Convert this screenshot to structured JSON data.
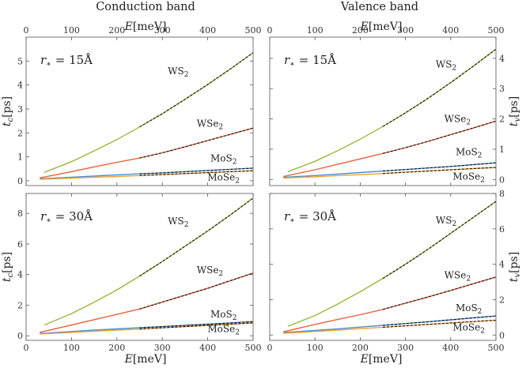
{
  "column_titles": [
    "Conduction band",
    "Valence band"
  ],
  "top_axis_label": "E[meV]",
  "bottom_axis_label": "E[meV]",
  "colors": {
    "WS2": "#98b83a",
    "WSe2": "#e8613c",
    "MoS2": "#4a8fd0",
    "MoSe2": "#f0a030",
    "fit": "#111111"
  },
  "chart_data": [
    {
      "type": "line",
      "name": "panel-cb-15",
      "title": "Conduction band",
      "radius_label": "r* = 15Å",
      "ylabel": "t_c[ps]",
      "xlim": [
        0,
        500
      ],
      "ylim": [
        -0.2,
        6.0
      ],
      "xticks": [
        0,
        100,
        200,
        300,
        400,
        500
      ],
      "yticks": [
        0,
        1,
        2,
        3,
        4,
        5
      ],
      "series": [
        {
          "name": "WS2",
          "x": [
            40,
            100,
            150,
            200,
            250,
            300,
            350,
            400,
            450,
            500
          ],
          "values": [
            0.35,
            0.8,
            1.25,
            1.72,
            2.25,
            2.8,
            3.4,
            4.02,
            4.67,
            5.35
          ],
          "label_xy": [
            335,
            4.45
          ]
        },
        {
          "name": "WSe2",
          "x": [
            30,
            100,
            150,
            200,
            250,
            300,
            350,
            400,
            450,
            500
          ],
          "values": [
            0.12,
            0.38,
            0.58,
            0.77,
            0.95,
            1.17,
            1.42,
            1.68,
            1.94,
            2.2
          ],
          "label_xy": [
            405,
            2.25
          ]
        },
        {
          "name": "MoS2",
          "x": [
            30,
            100,
            150,
            200,
            250,
            300,
            350,
            400,
            450,
            500
          ],
          "values": [
            0.08,
            0.15,
            0.2,
            0.25,
            0.29,
            0.33,
            0.38,
            0.43,
            0.48,
            0.53
          ],
          "label_xy": [
            435,
            0.8
          ]
        },
        {
          "name": "MoSe2",
          "x": [
            30,
            100,
            150,
            200,
            250,
            300,
            350,
            400,
            450,
            500
          ],
          "values": [
            0.06,
            0.11,
            0.15,
            0.18,
            0.22,
            0.26,
            0.3,
            0.34,
            0.38,
            0.42
          ],
          "label_xy": [
            435,
            0.02
          ]
        }
      ],
      "fit_from_x": 250
    },
    {
      "type": "line",
      "name": "panel-vb-15",
      "title": "Valence band",
      "radius_label": "r* = 15Å",
      "ylabel": "t_v[ps]",
      "xlim": [
        0,
        500
      ],
      "ylim": [
        -0.2,
        4.7
      ],
      "xticks": [
        0,
        100,
        200,
        300,
        400,
        500
      ],
      "yticks": [
        0,
        1,
        2,
        3,
        4
      ],
      "series": [
        {
          "name": "WS2",
          "x": [
            40,
            100,
            150,
            200,
            250,
            300,
            350,
            400,
            450,
            500
          ],
          "values": [
            0.26,
            0.6,
            0.95,
            1.33,
            1.75,
            2.2,
            2.68,
            3.2,
            3.74,
            4.3
          ],
          "label_xy": [
            390,
            3.7
          ]
        },
        {
          "name": "WSe2",
          "x": [
            30,
            100,
            150,
            200,
            250,
            300,
            350,
            400,
            450,
            500
          ],
          "values": [
            0.1,
            0.32,
            0.5,
            0.68,
            0.86,
            1.05,
            1.26,
            1.48,
            1.7,
            1.93
          ],
          "label_xy": [
            415,
            1.9
          ]
        },
        {
          "name": "MoS2",
          "x": [
            30,
            100,
            150,
            200,
            250,
            300,
            350,
            400,
            450,
            500
          ],
          "values": [
            0.07,
            0.13,
            0.18,
            0.23,
            0.28,
            0.33,
            0.38,
            0.43,
            0.49,
            0.55
          ],
          "label_xy": [
            440,
            0.8
          ]
        },
        {
          "name": "MoSe2",
          "x": [
            30,
            100,
            150,
            200,
            250,
            300,
            350,
            400,
            450,
            500
          ],
          "values": [
            0.05,
            0.09,
            0.13,
            0.16,
            0.2,
            0.24,
            0.28,
            0.32,
            0.36,
            0.4
          ],
          "label_xy": [
            440,
            0.0
          ]
        }
      ],
      "fit_from_x": 250
    },
    {
      "type": "line",
      "name": "panel-cb-30",
      "title": "",
      "radius_label": "r* = 30Å",
      "ylabel": "t_c[ps]",
      "xlim": [
        0,
        500
      ],
      "ylim": [
        -0.3,
        9.3
      ],
      "xticks": [
        0,
        100,
        200,
        300,
        400,
        500
      ],
      "yticks": [
        0,
        2,
        4,
        6,
        8
      ],
      "series": [
        {
          "name": "WS2",
          "x": [
            40,
            100,
            150,
            200,
            250,
            300,
            350,
            400,
            450,
            500
          ],
          "values": [
            0.7,
            1.45,
            2.2,
            3.0,
            3.9,
            4.85,
            5.85,
            6.85,
            7.9,
            9.0
          ],
          "label_xy": [
            335,
            7.3
          ]
        },
        {
          "name": "WSe2",
          "x": [
            30,
            100,
            150,
            200,
            250,
            300,
            350,
            400,
            450,
            500
          ],
          "values": [
            0.22,
            0.7,
            1.05,
            1.4,
            1.75,
            2.2,
            2.65,
            3.1,
            3.6,
            4.1
          ],
          "label_xy": [
            405,
            4.1
          ]
        },
        {
          "name": "MoS2",
          "x": [
            30,
            100,
            150,
            200,
            250,
            300,
            350,
            400,
            450,
            500
          ],
          "values": [
            0.15,
            0.28,
            0.37,
            0.45,
            0.53,
            0.6,
            0.68,
            0.76,
            0.84,
            0.93
          ],
          "label_xy": [
            435,
            1.2
          ]
        },
        {
          "name": "MoSe2",
          "x": [
            30,
            100,
            150,
            200,
            250,
            300,
            350,
            400,
            450,
            500
          ],
          "values": [
            0.12,
            0.22,
            0.3,
            0.37,
            0.44,
            0.52,
            0.6,
            0.68,
            0.76,
            0.84
          ],
          "label_xy": [
            435,
            0.25
          ]
        }
      ],
      "fit_from_x": 250
    },
    {
      "type": "line",
      "name": "panel-vb-30",
      "title": "",
      "radius_label": "r* = 30Å",
      "ylabel": "t_v[ps]",
      "xlim": [
        0,
        500
      ],
      "ylim": [
        -0.3,
        8.0
      ],
      "xticks": [
        0,
        100,
        200,
        300,
        400,
        500
      ],
      "yticks": [
        0,
        2,
        4,
        6,
        8
      ],
      "series": [
        {
          "name": "WS2",
          "x": [
            40,
            100,
            150,
            200,
            250,
            300,
            350,
            400,
            450,
            500
          ],
          "values": [
            0.5,
            1.1,
            1.75,
            2.45,
            3.2,
            4.0,
            4.85,
            5.75,
            6.65,
            7.55
          ],
          "label_xy": [
            390,
            6.3
          ]
        },
        {
          "name": "WSe2",
          "x": [
            30,
            100,
            150,
            200,
            250,
            300,
            350,
            400,
            450,
            500
          ],
          "values": [
            0.18,
            0.6,
            0.88,
            1.15,
            1.45,
            1.8,
            2.15,
            2.52,
            2.9,
            3.28
          ],
          "label_xy": [
            415,
            3.2
          ]
        },
        {
          "name": "MoS2",
          "x": [
            30,
            100,
            150,
            200,
            250,
            300,
            350,
            400,
            450,
            500
          ],
          "values": [
            0.14,
            0.26,
            0.35,
            0.45,
            0.55,
            0.65,
            0.75,
            0.86,
            0.97,
            1.08
          ],
          "label_xy": [
            440,
            1.35
          ]
        },
        {
          "name": "MoSe2",
          "x": [
            30,
            100,
            150,
            200,
            250,
            300,
            350,
            400,
            450,
            500
          ],
          "values": [
            0.1,
            0.2,
            0.28,
            0.36,
            0.44,
            0.52,
            0.6,
            0.68,
            0.76,
            0.84
          ],
          "label_xy": [
            440,
            0.25
          ]
        }
      ],
      "fit_from_x": 250
    }
  ]
}
